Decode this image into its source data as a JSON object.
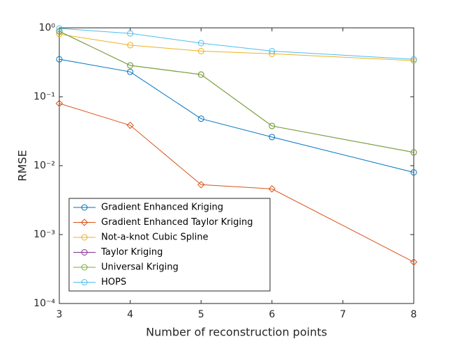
{
  "chart_data": {
    "type": "line",
    "x_label": "Number of reconstruction points",
    "y_label": "RMSE",
    "x": [
      3,
      4,
      5,
      6,
      8
    ],
    "xlim": [
      3,
      8
    ],
    "xticks": [
      3,
      4,
      5,
      6,
      7,
      8
    ],
    "ylim": [
      0.0001,
      1
    ],
    "y_scale": "log",
    "yticks": [
      {
        "value": 0.0001,
        "label": "10⁻⁴"
      },
      {
        "value": 0.001,
        "label": "10⁻³"
      },
      {
        "value": 0.01,
        "label": "10⁻²"
      },
      {
        "value": 0.1,
        "label": "10⁻¹"
      },
      {
        "value": 1,
        "label": "10⁰"
      }
    ],
    "legend_position": "lower left",
    "series": [
      {
        "name": "Gradient Enhanced Kriging",
        "color": "#0072BD",
        "marker": "circle",
        "values": [
          0.35,
          0.23,
          0.048,
          0.026,
          0.008
        ]
      },
      {
        "name": "Gradient Enhanced Taylor Kriging",
        "color": "#D95319",
        "marker": "diamond",
        "values": [
          0.08,
          0.0385,
          0.0053,
          0.0046,
          0.0004
        ]
      },
      {
        "name": "Not-a-knot Cubic Spline",
        "color": "#EDB120",
        "marker": "circle",
        "values": [
          0.81,
          0.56,
          0.46,
          0.42,
          0.335
        ]
      },
      {
        "name": "Taylor Kriging",
        "color": "#7E2F8E",
        "marker": "circle",
        "values": [
          0.89,
          0.285,
          0.21,
          0.0377,
          0.0156
        ]
      },
      {
        "name": "Universal Kriging",
        "color": "#77AC30",
        "marker": "circle",
        "values": [
          0.89,
          0.285,
          0.21,
          0.0377,
          0.0156
        ]
      },
      {
        "name": "HOPS",
        "color": "#4DBEEE",
        "marker": "circle",
        "values": [
          0.98,
          0.83,
          0.6,
          0.46,
          0.35
        ]
      }
    ]
  }
}
